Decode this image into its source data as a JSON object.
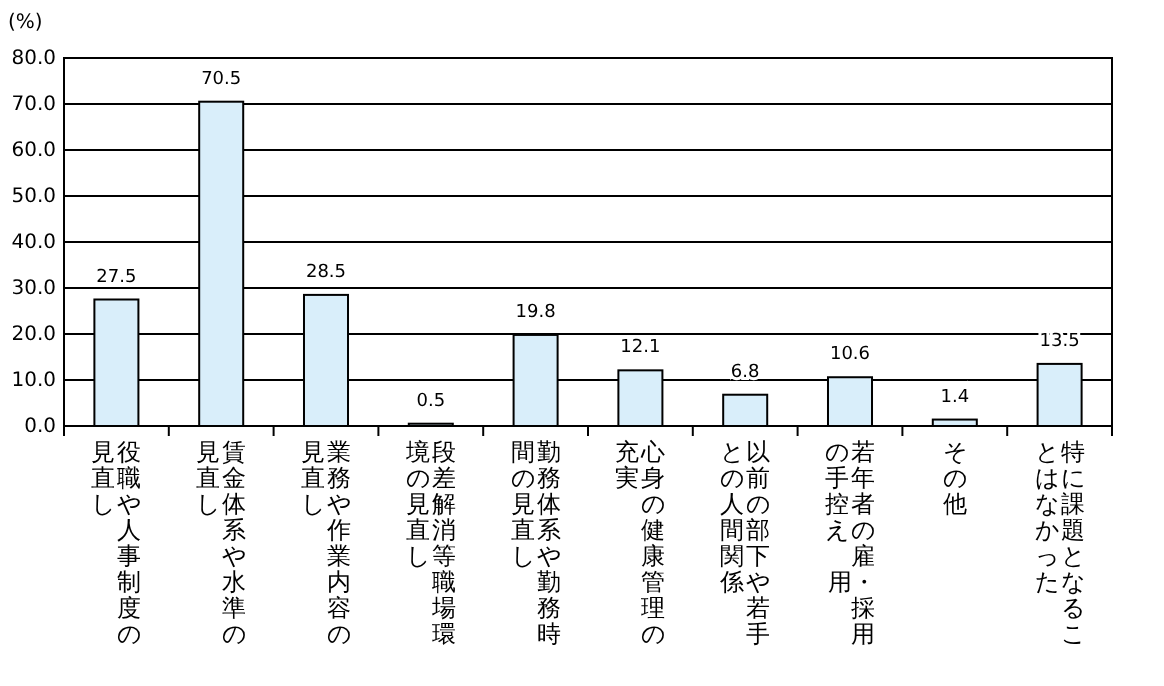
{
  "chart_data": {
    "type": "bar",
    "ylabel": "(%)",
    "categories": [
      "役職や人事制度の見直し",
      "賃金体系や水準の見直し",
      "業務や作業内容の見直し",
      "段差解消等職場環境の見直し",
      "勤務体系や勤務時間の見直し",
      "心身の健康管理の充実",
      "以前の部下や若手との人間関係",
      "若年者の雇用・採用の手控え",
      "その他",
      "特に課題となることはなかった"
    ],
    "values": [
      27.5,
      70.5,
      28.5,
      0.5,
      19.8,
      12.1,
      6.8,
      10.6,
      1.4,
      13.5
    ],
    "color": "#d9eefa",
    "ylim": [
      0,
      80
    ],
    "yticks": [
      {
        "value": 0,
        "label": "0.0"
      },
      {
        "value": 10,
        "label": "10.0"
      },
      {
        "value": 20,
        "label": "20.0"
      },
      {
        "value": 30,
        "label": "30.0"
      },
      {
        "value": 40,
        "label": "40.0"
      },
      {
        "value": 50,
        "label": "50.0"
      },
      {
        "value": 60,
        "label": "60.0"
      },
      {
        "value": 70,
        "label": "70.0"
      },
      {
        "value": 80,
        "label": "80.0"
      }
    ],
    "grid": "y",
    "data_labels": true
  }
}
